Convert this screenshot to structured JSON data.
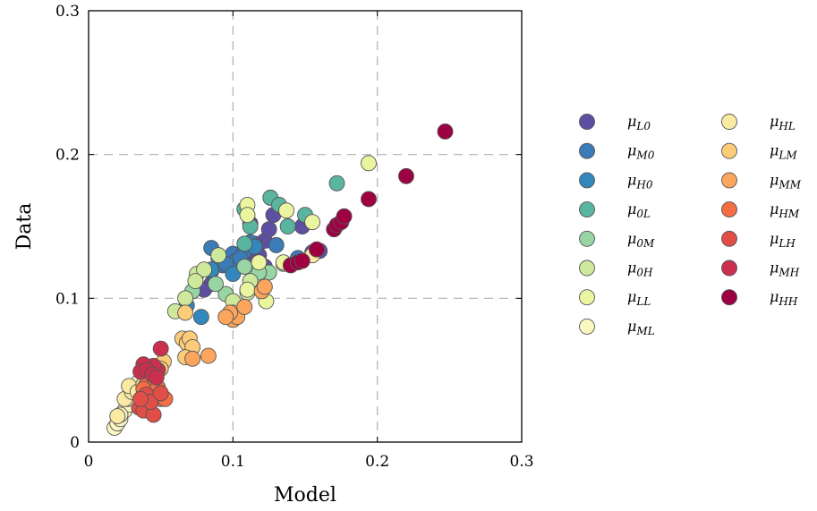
{
  "chart_data": {
    "type": "scatter",
    "xlabel": "Model",
    "ylabel": "Data",
    "xlim": [
      0,
      0.3
    ],
    "ylim": [
      0,
      0.3
    ],
    "xticks": [
      0,
      0.1,
      0.2,
      0.3
    ],
    "yticks": [
      0,
      0.1,
      0.2,
      0.3
    ],
    "xtick_labels": [
      "0",
      "0.1",
      "0.2",
      "0.3"
    ],
    "ytick_labels": [
      "0",
      "0.1",
      "0.2",
      "0.3"
    ],
    "grid": "dashed at 0.1 and 0.2",
    "legend_position": "right, outside plot, two columns",
    "series": [
      {
        "name": "μ_L0",
        "symbol": "μ",
        "sub": "L0",
        "color": "#5e4fa2",
        "points": [
          [
            0.112,
            0.152
          ],
          [
            0.118,
            0.13
          ],
          [
            0.122,
            0.14
          ],
          [
            0.125,
            0.148
          ],
          [
            0.128,
            0.158
          ],
          [
            0.122,
            0.122
          ],
          [
            0.118,
            0.118
          ],
          [
            0.115,
            0.138
          ],
          [
            0.108,
            0.126
          ],
          [
            0.148,
            0.15
          ],
          [
            0.155,
            0.132
          ],
          [
            0.16,
            0.133
          ],
          [
            0.085,
            0.11
          ],
          [
            0.08,
            0.106
          ]
        ]
      },
      {
        "name": "μ_M0",
        "symbol": "μ",
        "sub": "M0",
        "color": "#3a7bb8",
        "points": [
          [
            0.085,
            0.135
          ],
          [
            0.093,
            0.123
          ],
          [
            0.098,
            0.127
          ],
          [
            0.1,
            0.131
          ],
          [
            0.102,
            0.126
          ],
          [
            0.108,
            0.133
          ],
          [
            0.112,
            0.139
          ],
          [
            0.13,
            0.137
          ],
          [
            0.145,
            0.128
          ],
          [
            0.09,
            0.128
          ],
          [
            0.085,
            0.119
          ],
          [
            0.095,
            0.124
          ],
          [
            0.105,
            0.128
          ]
        ]
      },
      {
        "name": "μ_H0",
        "symbol": "μ",
        "sub": "H0",
        "color": "#3288bd",
        "points": [
          [
            0.078,
            0.087
          ],
          [
            0.068,
            0.095
          ],
          [
            0.072,
            0.105
          ],
          [
            0.1,
            0.117
          ],
          [
            0.115,
            0.136
          ],
          [
            0.085,
            0.12
          ]
        ]
      },
      {
        "name": "μ_0L",
        "symbol": "μ",
        "sub": "0L",
        "color": "#5ab5a0",
        "points": [
          [
            0.126,
            0.17
          ],
          [
            0.132,
            0.165
          ],
          [
            0.15,
            0.158
          ],
          [
            0.172,
            0.18
          ],
          [
            0.138,
            0.15
          ],
          [
            0.108,
            0.162
          ],
          [
            0.112,
            0.15
          ],
          [
            0.108,
            0.138
          ]
        ]
      },
      {
        "name": "μ_0M",
        "symbol": "μ",
        "sub": "0M",
        "color": "#99d5a4",
        "points": [
          [
            0.095,
            0.103
          ],
          [
            0.108,
            0.122
          ],
          [
            0.112,
            0.112
          ],
          [
            0.125,
            0.118
          ],
          [
            0.135,
            0.124
          ],
          [
            0.118,
            0.118
          ],
          [
            0.088,
            0.11
          ],
          [
            0.072,
            0.105
          ]
        ]
      },
      {
        "name": "μ_0H",
        "symbol": "μ",
        "sub": "0H",
        "color": "#cfe99c",
        "points": [
          [
            0.06,
            0.091
          ],
          [
            0.067,
            0.1
          ],
          [
            0.075,
            0.117
          ],
          [
            0.08,
            0.12
          ],
          [
            0.112,
            0.112
          ],
          [
            0.11,
            0.104
          ],
          [
            0.1,
            0.098
          ],
          [
            0.09,
            0.13
          ],
          [
            0.074,
            0.112
          ]
        ]
      },
      {
        "name": "μ_LL",
        "symbol": "μ",
        "sub": "LL",
        "color": "#ebf5a0",
        "points": [
          [
            0.11,
            0.165
          ],
          [
            0.11,
            0.158
          ],
          [
            0.137,
            0.161
          ],
          [
            0.155,
            0.153
          ],
          [
            0.194,
            0.194
          ],
          [
            0.11,
            0.106
          ],
          [
            0.123,
            0.098
          ],
          [
            0.118,
            0.125
          ],
          [
            0.135,
            0.125
          ]
        ]
      },
      {
        "name": "μ_ML",
        "symbol": "μ",
        "sub": "ML",
        "color": "#fbf7c2",
        "points": [
          [
            0.018,
            0.01
          ],
          [
            0.02,
            0.013
          ],
          [
            0.022,
            0.016
          ],
          [
            0.025,
            0.022
          ],
          [
            0.028,
            0.026
          ],
          [
            0.03,
            0.033
          ],
          [
            0.032,
            0.038
          ],
          [
            0.035,
            0.042
          ],
          [
            0.022,
            0.019
          ],
          [
            0.027,
            0.03
          ]
        ]
      },
      {
        "name": "μ_HL",
        "symbol": "μ",
        "sub": "HL",
        "color": "#fbeaa2",
        "points": [
          [
            0.025,
            0.03
          ],
          [
            0.03,
            0.035
          ],
          [
            0.028,
            0.039
          ],
          [
            0.034,
            0.035
          ],
          [
            0.038,
            0.04
          ],
          [
            0.02,
            0.018
          ],
          [
            0.155,
            0.13
          ]
        ]
      },
      {
        "name": "μ_LM",
        "symbol": "μ",
        "sub": "LM",
        "color": "#fdcc79",
        "points": [
          [
            0.065,
            0.072
          ],
          [
            0.068,
            0.069
          ],
          [
            0.07,
            0.072
          ],
          [
            0.072,
            0.066
          ],
          [
            0.067,
            0.09
          ],
          [
            0.052,
            0.056
          ],
          [
            0.05,
            0.051
          ],
          [
            0.044,
            0.044
          ],
          [
            0.067,
            0.059
          ],
          [
            0.1,
            0.09
          ]
        ]
      },
      {
        "name": "μ_MM",
        "symbol": "μ",
        "sub": "MM",
        "color": "#fca55d",
        "points": [
          [
            0.072,
            0.058
          ],
          [
            0.083,
            0.06
          ],
          [
            0.1,
            0.085
          ],
          [
            0.103,
            0.087
          ],
          [
            0.108,
            0.094
          ],
          [
            0.12,
            0.105
          ],
          [
            0.122,
            0.108
          ],
          [
            0.098,
            0.09
          ],
          [
            0.095,
            0.087
          ]
        ]
      },
      {
        "name": "μ_HM",
        "symbol": "μ",
        "sub": "HM",
        "color": "#f46d43",
        "points": [
          [
            0.05,
            0.03
          ],
          [
            0.053,
            0.03
          ],
          [
            0.045,
            0.036
          ],
          [
            0.04,
            0.04
          ],
          [
            0.038,
            0.037
          ],
          [
            0.042,
            0.032
          ],
          [
            0.048,
            0.038
          ]
        ]
      },
      {
        "name": "μ_LH",
        "symbol": "μ",
        "sub": "LH",
        "color": "#e04e47",
        "points": [
          [
            0.035,
            0.024
          ],
          [
            0.038,
            0.022
          ],
          [
            0.045,
            0.019
          ],
          [
            0.04,
            0.033
          ],
          [
            0.043,
            0.028
          ],
          [
            0.05,
            0.034
          ],
          [
            0.036,
            0.03
          ]
        ]
      },
      {
        "name": "μ_MH",
        "symbol": "μ",
        "sub": "MH",
        "color": "#cc2f4e",
        "points": [
          [
            0.05,
            0.065
          ],
          [
            0.048,
            0.05
          ],
          [
            0.045,
            0.053
          ],
          [
            0.038,
            0.054
          ],
          [
            0.036,
            0.049
          ],
          [
            0.04,
            0.05
          ],
          [
            0.044,
            0.047
          ],
          [
            0.047,
            0.045
          ]
        ]
      },
      {
        "name": "μ_HH",
        "symbol": "μ",
        "sub": "HH",
        "color": "#9e0142",
        "points": [
          [
            0.14,
            0.123
          ],
          [
            0.145,
            0.125
          ],
          [
            0.148,
            0.126
          ],
          [
            0.158,
            0.134
          ],
          [
            0.17,
            0.148
          ],
          [
            0.172,
            0.151
          ],
          [
            0.175,
            0.153
          ],
          [
            0.177,
            0.157
          ],
          [
            0.194,
            0.169
          ],
          [
            0.22,
            0.185
          ],
          [
            0.247,
            0.216
          ]
        ]
      }
    ]
  }
}
